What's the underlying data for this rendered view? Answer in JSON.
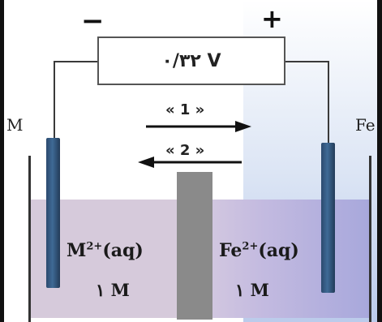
{
  "meter": {
    "reading": "۰/۳۲ V"
  },
  "signs": {
    "negative": "−",
    "positive": "+"
  },
  "electrodes": {
    "left_label": "M",
    "right_label": "Fe"
  },
  "arrows": {
    "one": "« 1 »",
    "two": "« 2 »"
  },
  "solutions": {
    "left_ion": "M",
    "left_charge": "2+",
    "left_state": "(aq)",
    "left_conc": "۱  M",
    "right_ion": "Fe",
    "right_charge": "2+",
    "right_state": "(aq)",
    "right_conc": "۱  M"
  },
  "colors": {
    "electrode": "#3f6a96",
    "solution": "#d6cadb",
    "salt_bridge": "#8a8a8a",
    "wire": "#3a3a3a"
  }
}
